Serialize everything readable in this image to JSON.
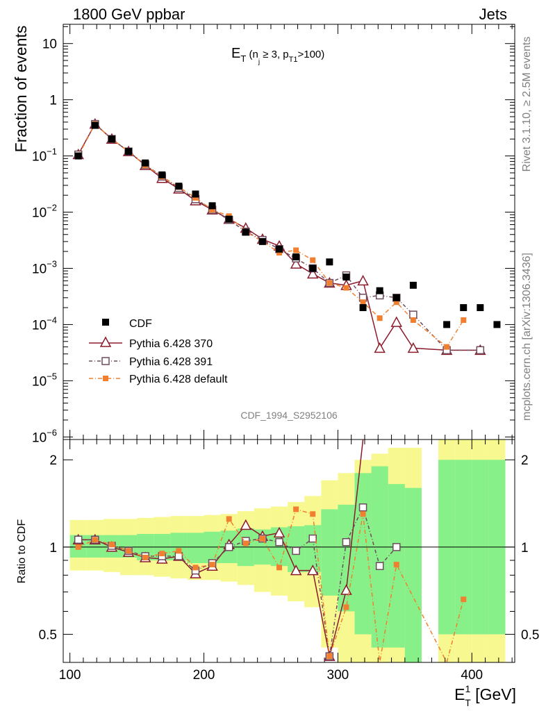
{
  "header": {
    "left": "1800 GeV ppbar",
    "right": "Jets"
  },
  "title": {
    "main": "E",
    "sub_t": "T",
    "open": " (n",
    "sub_j": "j",
    "cond": " ≥ 3, p",
    "sub_t1": "T1",
    "close": ">100)"
  },
  "side": {
    "rivet": "Rivet 3.1.10, ≥ 2.5M events",
    "mcplots": "mcplots.cern.ch [arXiv:1306.3436]"
  },
  "watermark": "CDF_1994_S2952106",
  "axes": {
    "top_ylabel": "Fraction of events",
    "bottom_ylabel": "Ratio to CDF",
    "xlabel_main": "E",
    "xlabel_sup": "1",
    "xlabel_sub": "T",
    "xlabel_unit": " [GeV]",
    "x_ticks": [
      "100",
      "200",
      "300",
      "400"
    ],
    "top_ticks": [
      {
        "base": "10",
        "exp": "",
        "v": 10
      },
      {
        "base": "1",
        "exp": "",
        "v": 1
      },
      {
        "base": "10",
        "exp": "−1",
        "v": 0.1
      },
      {
        "base": "10",
        "exp": "−2",
        "v": 0.01
      },
      {
        "base": "10",
        "exp": "−3",
        "v": 0.001
      },
      {
        "base": "10",
        "exp": "−4",
        "v": 0.0001
      },
      {
        "base": "10",
        "exp": "−5",
        "v": 1e-05
      },
      {
        "base": "10",
        "exp": "−6",
        "v": 1e-06
      }
    ],
    "ratio_ticks": [
      "0.5",
      "1",
      "2"
    ]
  },
  "legend": [
    {
      "label": "CDF",
      "key": "cdf"
    },
    {
      "label": "Pythia 6.428 370",
      "key": "p370"
    },
    {
      "label": "Pythia 6.428 391",
      "key": "p391"
    },
    {
      "label": "Pythia 6.428 default",
      "key": "pdef"
    }
  ],
  "colors": {
    "p370": "#8b1a2b",
    "p391": "#6e4a5e",
    "pdef": "#f08030",
    "band_inner": "#88f088",
    "band_outer": "#f8f890"
  },
  "chart_data": {
    "type": "line",
    "x_range": [
      95,
      432
    ],
    "y_range_top": [
      9e-07,
      22
    ],
    "y_scale_top": "log",
    "y_range_ratio": [
      0.4,
      2.35
    ],
    "y_scale_ratio": "log",
    "bin_edges": [
      100,
      112.5,
      125,
      137.5,
      150,
      162.5,
      175,
      187.5,
      200,
      212.5,
      225,
      237.5,
      250,
      262.5,
      275,
      287.5,
      300,
      312.5,
      325,
      337.5,
      350,
      362.5,
      375,
      387.5,
      400,
      412.5,
      425
    ],
    "data": {
      "x": [
        106.25,
        118.75,
        131.25,
        143.75,
        156.25,
        168.75,
        181.25,
        193.75,
        206.25,
        218.75,
        231.25,
        243.75,
        256.25,
        268.75,
        281.25,
        293.75,
        306.25,
        318.75,
        331.25,
        343.75,
        356.25,
        381.25,
        393.75,
        406.25,
        418.75
      ],
      "y": [
        0.1,
        0.35,
        0.2,
        0.12,
        0.075,
        0.046,
        0.029,
        0.021,
        0.013,
        0.0075,
        0.0044,
        0.003,
        0.0022,
        0.0016,
        0.001,
        0.0013,
        0.0007,
        0.0002,
        0.0004,
        0.0003,
        0.0005,
        0.0001,
        0.0002,
        0.0002,
        0.0001
      ]
    },
    "series": [
      {
        "name": "Pythia 6.428 370",
        "key": "p370",
        "x": [
          106.25,
          118.75,
          131.25,
          143.75,
          156.25,
          168.75,
          181.25,
          193.75,
          206.25,
          218.75,
          231.25,
          243.75,
          256.25,
          268.75,
          281.25,
          293.75,
          306.25,
          318.75,
          331.25,
          343.75,
          356.25,
          381.25,
          406.25
        ],
        "y": [
          0.106,
          0.37,
          0.2,
          0.12,
          0.068,
          0.04,
          0.026,
          0.016,
          0.011,
          0.0075,
          0.0052,
          0.0033,
          0.0025,
          0.0012,
          0.0008,
          0.00055,
          0.0005,
          0.0006,
          3.8e-05,
          0.00011,
          3.8e-05,
          3.5e-05,
          3.5e-05
        ],
        "ratio": [
          1.06,
          1.06,
          1.0,
          0.96,
          0.92,
          0.91,
          0.93,
          0.81,
          0.86,
          1.02,
          1.19,
          1.09,
          1.12,
          0.83,
          0.83,
          0.42,
          0.71,
          2.4,
          null,
          null,
          null,
          null,
          null
        ]
      },
      {
        "name": "Pythia 6.428 391",
        "key": "p391",
        "x": [
          106.25,
          118.75,
          131.25,
          143.75,
          156.25,
          168.75,
          181.25,
          193.75,
          206.25,
          218.75,
          231.25,
          243.75,
          256.25,
          268.75,
          281.25,
          293.75,
          306.25,
          318.75,
          331.25,
          343.75,
          356.25,
          381.25,
          406.25
        ],
        "y": [
          0.106,
          0.37,
          0.2,
          0.12,
          0.07,
          0.043,
          0.027,
          0.017,
          0.011,
          0.0073,
          0.0045,
          0.0032,
          0.0022,
          0.0015,
          0.001,
          0.00055,
          0.00075,
          0.0003,
          0.00033,
          0.0003,
          0.00015,
          3.5e-05,
          3.5e-05
        ],
        "ratio": [
          1.06,
          1.06,
          1.01,
          0.97,
          0.93,
          0.93,
          0.93,
          0.83,
          0.88,
          1.0,
          1.05,
          1.07,
          1.04,
          0.97,
          1.07,
          0.42,
          1.04,
          1.37,
          0.86,
          1.0,
          null,
          null,
          null
        ]
      },
      {
        "name": "Pythia 6.428 default",
        "key": "pdef",
        "x": [
          106.25,
          118.75,
          131.25,
          143.75,
          156.25,
          168.75,
          181.25,
          193.75,
          206.25,
          218.75,
          231.25,
          243.75,
          256.25,
          268.75,
          281.25,
          293.75,
          306.25,
          318.75,
          331.25,
          343.75,
          356.25,
          381.25,
          393.75
        ],
        "y": [
          0.1,
          0.37,
          0.2,
          0.12,
          0.068,
          0.043,
          0.028,
          0.018,
          0.011,
          0.0085,
          0.0045,
          0.003,
          0.0019,
          0.0021,
          0.0014,
          0.00055,
          0.00045,
          0.00025,
          0.00013,
          0.00025,
          0.00012,
          4e-05,
          0.00012
        ],
        "ratio": [
          1.0,
          1.06,
          1.02,
          0.97,
          0.92,
          0.95,
          0.97,
          0.85,
          0.87,
          1.25,
          1.03,
          1.07,
          0.85,
          1.35,
          1.3,
          0.42,
          0.62,
          1.3,
          0.32,
          0.87,
          null,
          0.38,
          0.66
        ]
      }
    ],
    "band_inner": [
      [
        0.92,
        1.1
      ],
      [
        0.92,
        1.1
      ],
      [
        0.92,
        1.1
      ],
      [
        0.92,
        1.1
      ],
      [
        0.9,
        1.11
      ],
      [
        0.9,
        1.11
      ],
      [
        0.9,
        1.12
      ],
      [
        0.88,
        1.12
      ],
      [
        0.88,
        1.13
      ],
      [
        0.88,
        1.14
      ],
      [
        0.86,
        1.16
      ],
      [
        0.87,
        1.15
      ],
      [
        0.86,
        1.17
      ],
      [
        0.82,
        1.18
      ],
      [
        0.82,
        1.19
      ],
      [
        0.68,
        1.35
      ],
      [
        0.6,
        1.4
      ],
      [
        0.5,
        1.8
      ],
      [
        0.45,
        1.9
      ],
      [
        0.45,
        1.65
      ],
      [
        0.4,
        1.6
      ],
      [
        null,
        null
      ],
      [
        0.5,
        2.0
      ],
      [
        0.5,
        2.0
      ],
      [
        0.5,
        2.0
      ],
      [
        0.5,
        2.0
      ]
    ],
    "band_outer": [
      [
        0.83,
        1.24
      ],
      [
        0.83,
        1.24
      ],
      [
        0.82,
        1.25
      ],
      [
        0.8,
        1.25
      ],
      [
        0.8,
        1.26
      ],
      [
        0.79,
        1.27
      ],
      [
        0.78,
        1.28
      ],
      [
        0.77,
        1.28
      ],
      [
        0.77,
        1.29
      ],
      [
        0.76,
        1.3
      ],
      [
        0.74,
        1.33
      ],
      [
        0.7,
        1.36
      ],
      [
        0.68,
        1.38
      ],
      [
        0.65,
        1.43
      ],
      [
        0.62,
        1.5
      ],
      [
        0.45,
        1.7
      ],
      [
        0.35,
        1.8
      ],
      [
        0.35,
        2.0
      ],
      [
        0.3,
        2.1
      ],
      [
        0.35,
        2.2
      ],
      [
        0.3,
        2.2
      ],
      [
        null,
        null
      ],
      [
        0.3,
        2.5
      ],
      [
        0.3,
        2.5
      ],
      [
        0.3,
        2.5
      ],
      [
        0.3,
        2.5
      ]
    ]
  }
}
